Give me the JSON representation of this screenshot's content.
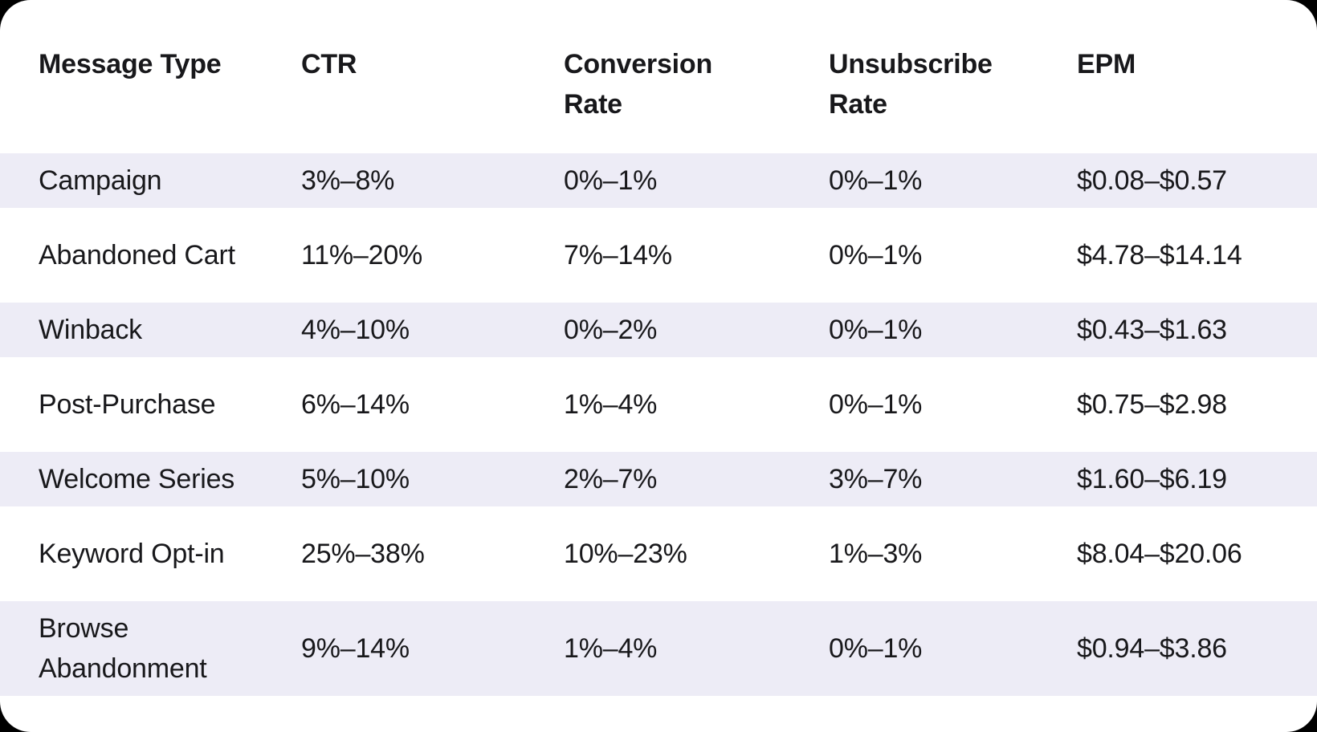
{
  "colors": {
    "page_background": "#000000",
    "card_background": "#FFFFFF",
    "row_stripe": "#EDECF6",
    "text": "#18181B"
  },
  "chart_data": {
    "type": "table",
    "title": "",
    "columns": [
      "Message Type",
      "CTR",
      "Conversion Rate",
      "Unsubscribe Rate",
      "EPM"
    ],
    "rows": [
      [
        "Campaign",
        "3%–8%",
        "0%–1%",
        "0%–1%",
        "$0.08–$0.57"
      ],
      [
        "Abandoned Cart",
        "11%–20%",
        "7%–14%",
        "0%–1%",
        "$4.78–$14.14"
      ],
      [
        "Winback",
        "4%–10%",
        "0%–2%",
        "0%–1%",
        "$0.43–$1.63"
      ],
      [
        "Post-Purchase",
        "6%–14%",
        "1%–4%",
        "0%–1%",
        "$0.75–$2.98"
      ],
      [
        "Welcome Series",
        "5%–10%",
        "2%–7%",
        "3%–7%",
        "$1.60–$6.19"
      ],
      [
        "Keyword Opt-in",
        "25%–38%",
        "10%–23%",
        "1%–3%",
        "$8.04–$20.06"
      ],
      [
        "Browse Abandonment",
        "9%–14%",
        "1%–4%",
        "0%–1%",
        "$0.94–$3.86"
      ]
    ],
    "layout": {
      "zebra_striping": true,
      "striped_row_indices": [
        0,
        2,
        4,
        6
      ],
      "grid": false,
      "header_position": "top"
    }
  }
}
